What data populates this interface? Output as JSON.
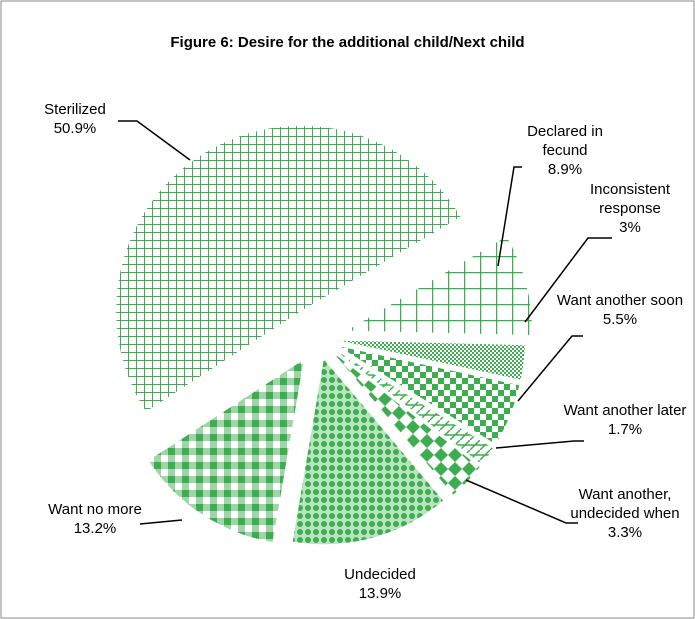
{
  "chart_data": {
    "type": "pie",
    "title": "Figure 6: Desire for the additional child/Next child",
    "categories": [
      "Sterilized",
      "Declared in fecund",
      "Inconsistent response",
      "Want another soon",
      "Want another later",
      "Want another, undecided when",
      "Undecided",
      "Want no more"
    ],
    "values": [
      50.9,
      8.9,
      3,
      5.5,
      1.7,
      3.3,
      13.9,
      13.2
    ],
    "value_labels": [
      "50.9%",
      "8.9%",
      "3%",
      "5.5%",
      "1.7%",
      "3.3%",
      "13.9%",
      "13.2%"
    ],
    "color": "#3dae4f"
  }
}
